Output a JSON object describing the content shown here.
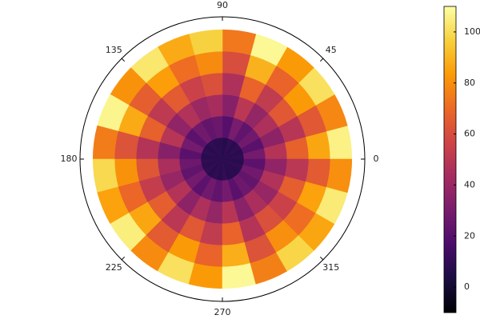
{
  "chart_data": {
    "type": "polar-heatmap",
    "theta_edges": [
      0,
      15,
      30,
      45,
      60,
      75,
      90,
      105,
      120,
      135,
      150,
      165,
      180,
      195,
      210,
      225,
      240,
      255,
      270,
      285,
      300,
      315,
      330,
      345,
      360
    ],
    "r_edges": [
      0,
      1,
      2,
      3,
      4,
      5,
      6
    ],
    "rlim": [
      0,
      6.6
    ],
    "xticks": [
      0,
      45,
      90,
      135,
      180,
      225,
      270,
      315
    ],
    "z": [
      [
        9,
        7,
        9,
        7,
        10,
        6,
        8,
        8,
        9,
        7,
        9,
        7,
        9,
        8,
        9,
        7,
        9,
        7,
        10,
        7,
        8,
        8,
        9,
        7
      ],
      [
        29,
        21,
        28,
        23,
        30,
        20,
        26,
        24,
        28,
        22,
        29,
        21,
        27,
        23,
        29,
        22,
        28,
        23,
        29,
        21,
        27,
        24,
        28,
        22
      ],
      [
        48,
        36,
        46,
        38,
        50,
        34,
        44,
        40,
        47,
        37,
        49,
        34,
        45,
        39,
        48,
        36,
        46,
        38,
        49,
        35,
        45,
        39,
        47,
        37
      ],
      [
        67,
        49,
        64,
        52,
        68,
        46,
        61,
        55,
        65,
        51,
        67,
        48,
        63,
        53,
        66,
        50,
        64,
        52,
        68,
        48,
        61,
        55,
        66,
        50
      ],
      [
        86,
        64,
        83,
        68,
        89,
        60,
        79,
        71,
        84,
        66,
        87,
        62,
        81,
        69,
        86,
        65,
        83,
        68,
        88,
        62,
        80,
        71,
        85,
        65
      ],
      [
        106,
        78,
        101,
        83,
        108,
        74,
        97,
        87,
        103,
        81,
        107,
        75,
        99,
        85,
        105,
        79,
        101,
        83,
        108,
        76,
        98,
        86,
        104,
        80
      ]
    ],
    "clim": [
      -10,
      110
    ],
    "colorbar_ticks": [
      0,
      20,
      40,
      60,
      80,
      100
    ],
    "colormap": "inferno"
  }
}
